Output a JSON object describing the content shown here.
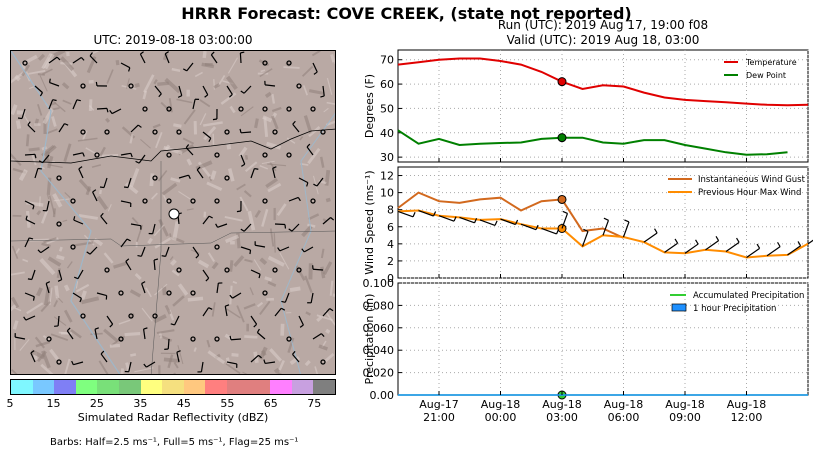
{
  "header": {
    "title": "HRRR Forecast: COVE CREEK, (state not reported)",
    "map_title": "UTC: 2019-08-18 03:00:00",
    "run_line": "Run (UTC): 2019 Aug 17, 19:00 f08",
    "valid_line": "Valid (UTC): 2019 Aug 18, 03:00"
  },
  "colorbar": {
    "label": "Simulated Radar Reflectivity (dBZ)",
    "ticks": [
      "5",
      "15",
      "25",
      "35",
      "45",
      "55",
      "65",
      "75"
    ],
    "colors": [
      "#7ff7ff",
      "#79c8ff",
      "#7f7ff5",
      "#7fff7f",
      "#79e079",
      "#79c879",
      "#ffff7f",
      "#f5e07f",
      "#ffc87f",
      "#ff7f7f",
      "#e07f7f",
      "#e07f7f",
      "#ff7fff",
      "#c8a0e0",
      "#7f7f7f"
    ]
  },
  "barbs_note": "Barbs: Half=2.5 ms⁻¹, Full=5 ms⁻¹, Flag=25 ms⁻¹",
  "x_ticks": [
    {
      "l1": "Aug-17",
      "l2": "21:00",
      "h": 2
    },
    {
      "l1": "Aug-18",
      "l2": "00:00",
      "h": 5
    },
    {
      "l1": "Aug-18",
      "l2": "03:00",
      "h": 8
    },
    {
      "l1": "Aug-18",
      "l2": "06:00",
      "h": 11
    },
    {
      "l1": "Aug-18",
      "l2": "09:00",
      "h": 14
    },
    {
      "l1": "Aug-18",
      "l2": "12:00",
      "h": 17
    }
  ],
  "chart_data": [
    {
      "type": "line",
      "ylabel": "Degrees (F)",
      "ylim": [
        28,
        74
      ],
      "yticks": [
        30,
        40,
        50,
        60,
        70
      ],
      "legend_position": "top-right",
      "x_hours_since_start": [
        0,
        1,
        2,
        3,
        4,
        5,
        6,
        7,
        8,
        9,
        10,
        11,
        12,
        13,
        14,
        15,
        16,
        17,
        18,
        19,
        20
      ],
      "series": [
        {
          "name": "Temperature",
          "color": "#e00000",
          "values": [
            68,
            69,
            70,
            70.5,
            70.5,
            69.5,
            68,
            65,
            61,
            58,
            59.5,
            59,
            56.5,
            54.5,
            53.5,
            53,
            52.5,
            52,
            51.5,
            51.3,
            51.5
          ]
        },
        {
          "name": "Dew Point",
          "color": "#008000",
          "values": [
            41,
            35.5,
            37.5,
            35,
            35.5,
            35.8,
            36,
            37.5,
            38,
            38,
            36,
            35.5,
            37,
            37,
            35,
            33.5,
            32,
            31,
            31.2,
            32,
            null
          ]
        }
      ],
      "marker_hour": 8
    },
    {
      "type": "line",
      "ylabel": "Wind Speed (ms⁻¹)",
      "ylim": [
        0,
        13
      ],
      "yticks": [
        0,
        2,
        4,
        6,
        8,
        10,
        12
      ],
      "legend_position": "top-right",
      "x_hours_since_start": [
        0,
        1,
        2,
        3,
        4,
        5,
        6,
        7,
        8,
        9,
        10,
        11,
        12,
        13,
        14,
        15,
        16,
        17,
        18,
        19,
        20
      ],
      "series": [
        {
          "name": "Instantaneous Wind Gust",
          "color": "#d2691e",
          "values": [
            8.2,
            10,
            9,
            8.8,
            9.2,
            9.4,
            7.9,
            9,
            9.2,
            5.5,
            5.8,
            4.7,
            null,
            null,
            null,
            null,
            null,
            null,
            null,
            null,
            null
          ]
        },
        {
          "name": "Previous Hour Max Wind",
          "color": "#ff8c00",
          "values": [
            7.8,
            7.9,
            7.3,
            7.1,
            6.8,
            6.9,
            6.3,
            5.8,
            5.8,
            3.7,
            5,
            4.8,
            4.2,
            3,
            2.9,
            3.3,
            3.1,
            2.4,
            2.6,
            2.7,
            4
          ]
        }
      ],
      "marker_hour": 8
    },
    {
      "type": "line",
      "ylabel": "Precipitation (in)",
      "ylim": [
        0,
        0.1
      ],
      "yticks": [
        0.0,
        0.02,
        0.04,
        0.06,
        0.08,
        0.1
      ],
      "ytick_labels": [
        "0.00",
        "0.020",
        "0.040",
        "0.060",
        "0.080",
        "0.100"
      ],
      "legend_position": "top-right",
      "series": [
        {
          "name": "Accumulated Precipitation",
          "color": "#32cd32",
          "values": [
            0,
            0,
            0,
            0,
            0,
            0,
            0,
            0,
            0,
            0,
            0,
            0,
            0,
            0,
            0,
            0,
            0,
            0,
            0,
            0,
            0
          ]
        },
        {
          "name": "1 hour Precipitation",
          "color": "#1e90ff",
          "values": [
            0,
            0,
            0,
            0,
            0,
            0,
            0,
            0,
            0,
            0,
            0,
            0,
            0,
            0,
            0,
            0,
            0,
            0,
            0,
            0,
            0
          ]
        }
      ],
      "marker_hour": 8
    }
  ]
}
